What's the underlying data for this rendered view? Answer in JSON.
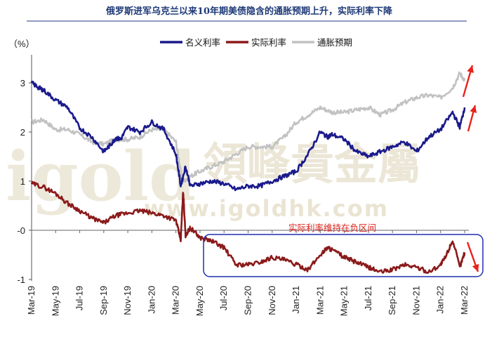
{
  "chart_data": {
    "type": "line",
    "title": "俄罗斯进军乌克兰以来10年期美债隐含的通胀预期上升，实际利率下降",
    "ylabel": "（%）",
    "ylim": [
      -1,
      3.5
    ],
    "yticks": [
      {
        "value": 3,
        "label": "3"
      },
      {
        "value": 2,
        "label": "2"
      },
      {
        "value": 1,
        "label": "1"
      },
      {
        "value": 0,
        "label": "-0"
      },
      {
        "value": -1,
        "label": "-1"
      }
    ],
    "x_labels": [
      "Mar-19",
      "May-19",
      "Jul-19",
      "Sep-19",
      "Nov-19",
      "Jan-20",
      "Mar-20",
      "May-20",
      "Jul-20",
      "Sep-20",
      "Nov-20",
      "Jan-21",
      "Mar-21",
      "May-21",
      "Jul-21",
      "Sep-21",
      "Nov-21",
      "Jan-22",
      "Mar-22"
    ],
    "legend_position": "top-center",
    "annotation": "实际利率维持在负区间",
    "watermark": {
      "brand": "igold",
      "chinese": "領峰貴金屬",
      "url": "www.igoldhk.com"
    },
    "colors": {
      "nominal": "#1a1a8c",
      "real": "#8b1a1a",
      "breakeven": "#c2c2c2",
      "accent": "#e8231b",
      "annotation_box": "#1f2fb0"
    },
    "series": [
      {
        "name": "名义利率",
        "key": "nominal",
        "x": [
          0,
          0.3,
          0.5,
          1,
          1.5,
          2,
          2.5,
          3,
          3.3,
          3.5,
          3.7,
          4,
          4.5,
          5,
          5.5,
          6,
          6.2,
          6.4,
          6.6,
          7,
          7.5,
          8,
          8.5,
          9,
          9.5,
          10,
          10.5,
          11,
          11.5,
          12,
          12.3,
          12.5,
          13,
          13.5,
          14,
          14.5,
          15,
          15.5,
          16,
          16.5,
          17,
          17.5,
          17.8,
          18
        ],
        "y": [
          3.0,
          2.9,
          2.85,
          2.65,
          2.5,
          2.08,
          1.9,
          1.6,
          1.75,
          1.88,
          1.85,
          2.1,
          2.0,
          2.2,
          2.05,
          1.55,
          0.9,
          1.3,
          0.9,
          0.95,
          1.0,
          0.95,
          0.83,
          0.9,
          0.9,
          1.0,
          1.1,
          1.2,
          1.55,
          2.0,
          1.9,
          1.95,
          1.85,
          1.6,
          1.5,
          1.6,
          1.7,
          1.8,
          1.6,
          1.9,
          2.05,
          2.4,
          2.1,
          2.5
        ]
      },
      {
        "name": "实际利率",
        "key": "real",
        "x": [
          0,
          0.5,
          1,
          1.5,
          2,
          2.5,
          3,
          3.5,
          4,
          4.5,
          5,
          5.5,
          6,
          6.2,
          6.3,
          6.4,
          6.6,
          7,
          7.5,
          8,
          8.5,
          9,
          9.5,
          10,
          10.5,
          11,
          11.5,
          12,
          12.3,
          12.5,
          13,
          13.5,
          14,
          14.5,
          15,
          15.5,
          16,
          16.5,
          17,
          17.2,
          17.5,
          17.8,
          18
        ],
        "y": [
          0.95,
          0.88,
          0.75,
          0.55,
          0.4,
          0.25,
          0.15,
          0.3,
          0.35,
          0.4,
          0.35,
          0.3,
          0.2,
          -0.2,
          0.8,
          -0.1,
          0.05,
          -0.15,
          -0.22,
          -0.35,
          -0.7,
          -0.7,
          -0.65,
          -0.55,
          -0.6,
          -0.7,
          -0.8,
          -0.5,
          -0.35,
          -0.4,
          -0.55,
          -0.65,
          -0.75,
          -0.85,
          -0.8,
          -0.7,
          -0.75,
          -0.85,
          -0.7,
          -0.55,
          -0.2,
          -0.75,
          -0.45
        ]
      },
      {
        "name": "通胀预期",
        "key": "breakeven",
        "x": [
          0,
          0.5,
          1,
          1.5,
          2,
          2.5,
          3,
          3.5,
          4,
          4.5,
          5,
          5.5,
          6,
          6.2,
          6.3,
          6.6,
          7,
          7.5,
          8,
          8.5,
          9,
          9.5,
          10,
          10.5,
          11,
          11.5,
          12,
          12.5,
          13,
          13.5,
          14,
          14.5,
          15,
          15.5,
          16,
          16.5,
          17,
          17.5,
          17.8,
          18
        ],
        "y": [
          2.2,
          2.25,
          2.05,
          2.05,
          1.95,
          1.8,
          1.75,
          1.85,
          1.85,
          1.9,
          2.05,
          2.05,
          1.8,
          1.2,
          1.0,
          1.1,
          1.2,
          1.3,
          1.4,
          1.55,
          1.7,
          1.7,
          1.7,
          1.9,
          2.2,
          2.35,
          2.5,
          2.4,
          2.4,
          2.45,
          2.5,
          2.35,
          2.45,
          2.6,
          2.7,
          2.75,
          2.7,
          2.9,
          3.2,
          3.05
        ]
      }
    ]
  }
}
